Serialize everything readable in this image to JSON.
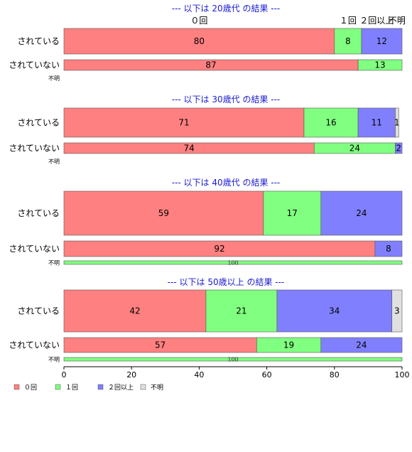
{
  "chart_data": {
    "type": "bar",
    "orientation": "horizontal-stacked-100",
    "categories_legend": [
      "０回",
      "１回",
      "２回以上",
      "不明"
    ],
    "colors": [
      "#ff8080",
      "#80ff80",
      "#8080ff",
      "#e0e0e0"
    ],
    "column_labels": [
      "０回",
      "１回",
      "２回以上",
      "不明"
    ],
    "x_ticks": [
      "0",
      "20",
      "40",
      "60",
      "80",
      "100"
    ],
    "xlim": [
      0,
      100
    ],
    "legend_position": "bottom-left",
    "panels": [
      {
        "title": "--- 以下は 20歳代 の結果 ---",
        "rows": [
          {
            "label": "されている",
            "values": [
              80,
              8,
              12,
              0
            ],
            "labels": [
              "80",
              "8",
              "12",
              ""
            ]
          },
          {
            "label": "されていない",
            "values": [
              87,
              13,
              0,
              0
            ],
            "labels": [
              "87",
              "13",
              "",
              ""
            ]
          },
          {
            "label": "不明",
            "values": [
              0,
              0,
              0,
              0
            ],
            "labels": [
              "",
              "",
              "",
              ""
            ]
          }
        ]
      },
      {
        "title": "--- 以下は 30歳代 の結果 ---",
        "rows": [
          {
            "label": "されている",
            "values": [
              71,
              16,
              11,
              1
            ],
            "labels": [
              "71",
              "16",
              "11",
              "1"
            ]
          },
          {
            "label": "されていない",
            "values": [
              74,
              24,
              2,
              0
            ],
            "labels": [
              "74",
              "24",
              "2",
              ""
            ]
          },
          {
            "label": "不明",
            "values": [
              0,
              0,
              0,
              0
            ],
            "labels": [
              "",
              "",
              "",
              ""
            ]
          }
        ]
      },
      {
        "title": "--- 以下は 40歳代 の結果 ---",
        "rows": [
          {
            "label": "されている",
            "values": [
              59,
              17,
              24,
              0
            ],
            "labels": [
              "59",
              "17",
              "24",
              ""
            ]
          },
          {
            "label": "されていない",
            "values": [
              92,
              0,
              8,
              0
            ],
            "labels": [
              "92",
              "",
              "8",
              ""
            ]
          },
          {
            "label": "不明",
            "values": [
              0,
              100,
              0,
              0
            ],
            "labels": [
              "",
              "100",
              "",
              ""
            ]
          }
        ]
      },
      {
        "title": "--- 以下は 50歳以上 の結果 ---",
        "rows": [
          {
            "label": "されている",
            "values": [
              42,
              21,
              34,
              3
            ],
            "labels": [
              "42",
              "21",
              "34",
              "3"
            ]
          },
          {
            "label": "されていない",
            "values": [
              57,
              19,
              24,
              0
            ],
            "labels": [
              "57",
              "19",
              "24",
              ""
            ]
          },
          {
            "label": "不明",
            "values": [
              0,
              100,
              0,
              0
            ],
            "labels": [
              "",
              "100",
              "",
              ""
            ]
          }
        ]
      }
    ]
  }
}
